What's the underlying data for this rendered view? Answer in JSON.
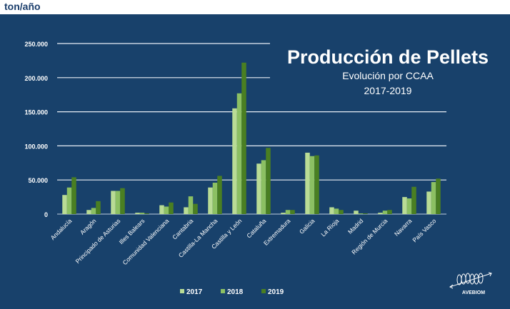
{
  "chart_data": {
    "type": "bar",
    "title": "Producción de Pellets",
    "subtitle": "Evolución por CCAA",
    "subtitle2": "2017-2019",
    "ylabel": "ton/año",
    "ylim": [
      0,
      250000
    ],
    "yticks": [
      "0",
      "50.000",
      "100.000",
      "150.000",
      "200.000",
      "250.000"
    ],
    "grid": true,
    "legend": "bottom",
    "categories": [
      "Andalucía",
      "Aragón",
      "Principado de Asturias",
      "Illes Balears",
      "Comunidad Valenciana",
      "Cantabria",
      "Castilla-La Mancha",
      "Castilla y León",
      "Cataluña",
      "Extremadura",
      "Galicia",
      "La Rioja",
      "Madrid",
      "Región de Murcia",
      "Navarra",
      "País Vasco"
    ],
    "series": [
      {
        "name": "2017",
        "color": "#b9dc95",
        "values": [
          28000,
          6000,
          34000,
          2000,
          13000,
          10000,
          39000,
          155000,
          74000,
          2000,
          90000,
          10000,
          5000,
          2000,
          25000,
          33000
        ]
      },
      {
        "name": "2018",
        "color": "#8cc063",
        "values": [
          39000,
          9000,
          34000,
          2000,
          11000,
          26000,
          46000,
          177000,
          79000,
          6000,
          85000,
          8000,
          1000,
          5000,
          23000,
          47000
        ]
      },
      {
        "name": "2019",
        "color": "#4a7f22",
        "values": [
          54000,
          19000,
          38000,
          1000,
          17000,
          15000,
          56000,
          222000,
          97000,
          6000,
          86000,
          6000,
          1000,
          6000,
          40000,
          52000
        ]
      }
    ]
  },
  "logo": {
    "text": "AVEBIOM",
    "icon": "pellet-coil-logo"
  },
  "background_color": "#18416b"
}
